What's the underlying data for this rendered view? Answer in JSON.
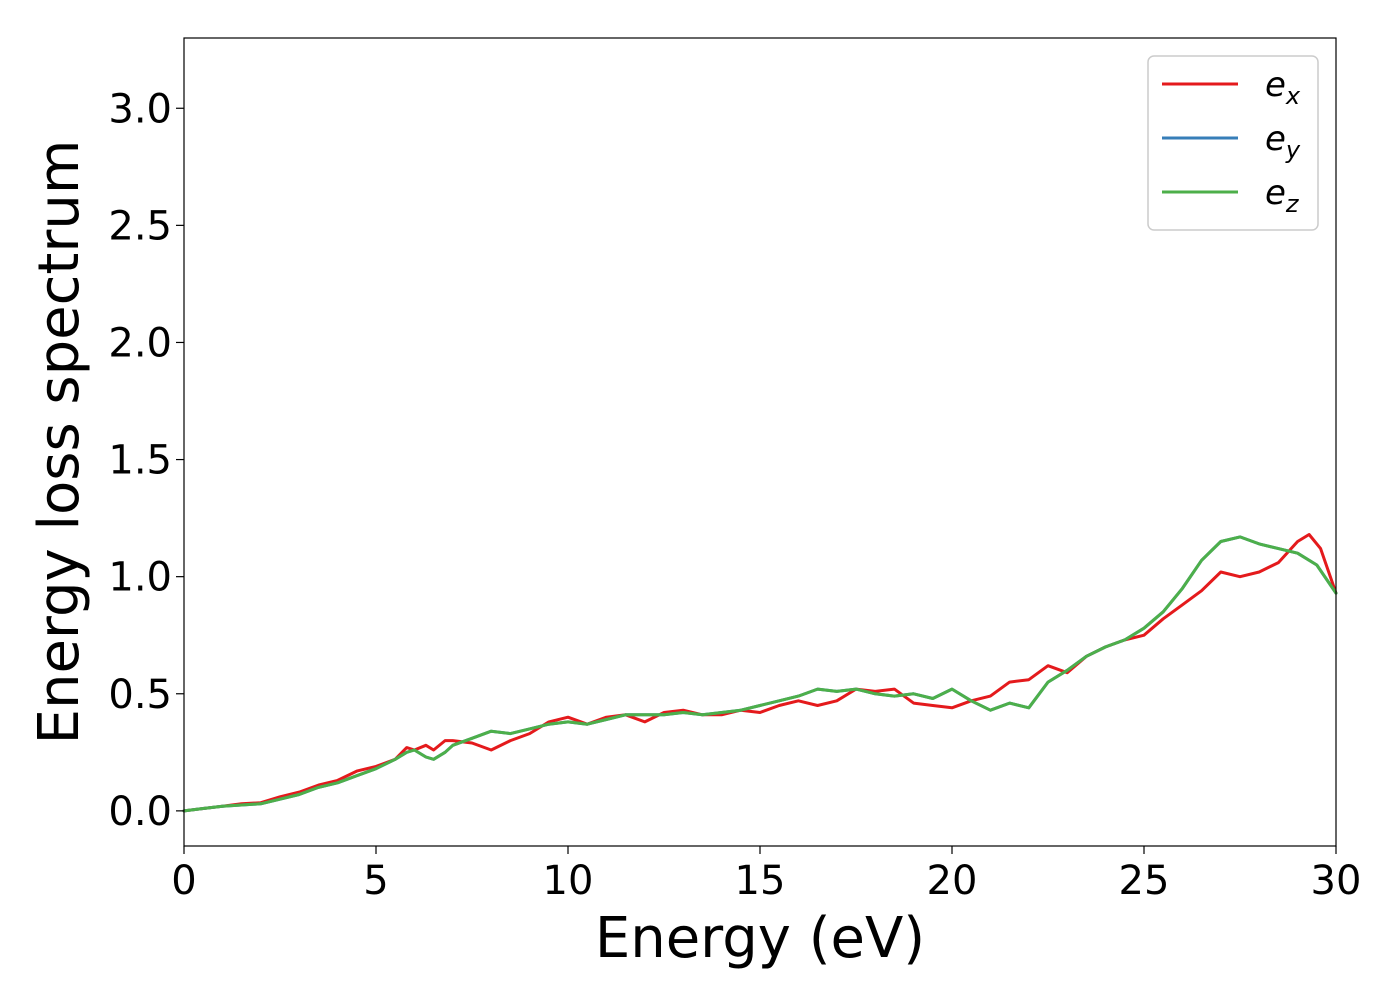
{
  "chart_data": {
    "type": "line",
    "title": "",
    "xlabel": "Energy (eV)",
    "ylabel": "Energy loss spectrum",
    "xlim": [
      0,
      30
    ],
    "ylim": [
      -0.15,
      3.3
    ],
    "xticks": [
      0,
      5,
      10,
      15,
      20,
      25,
      30
    ],
    "yticks": [
      0.0,
      0.5,
      1.0,
      1.5,
      2.0,
      2.5,
      3.0
    ],
    "xtick_labels": [
      "0",
      "5",
      "10",
      "15",
      "20",
      "25",
      "30"
    ],
    "ytick_labels": [
      "0.0",
      "0.5",
      "1.0",
      "1.5",
      "2.0",
      "2.5",
      "3.0"
    ],
    "grid": false,
    "legend_position": "top-right",
    "series": [
      {
        "name": "e",
        "subscript": "x",
        "color": "#e41a1c",
        "x": [
          0,
          0.5,
          1,
          1.5,
          2,
          2.5,
          3,
          3.5,
          4,
          4.5,
          5,
          5.5,
          5.8,
          6,
          6.3,
          6.5,
          6.8,
          7,
          7.5,
          8,
          8.5,
          9,
          9.5,
          10,
          10.5,
          11,
          11.5,
          12,
          12.5,
          13,
          13.5,
          14,
          14.5,
          15,
          15.5,
          16,
          16.5,
          17,
          17.5,
          18,
          18.5,
          19,
          19.5,
          20,
          20.5,
          21,
          21.5,
          22,
          22.5,
          23,
          23.5,
          24,
          24.5,
          25,
          25.5,
          26,
          26.5,
          27,
          27.5,
          28,
          28.5,
          29,
          29.3,
          29.6,
          30
        ],
        "values": [
          0.0,
          0.01,
          0.02,
          0.03,
          0.035,
          0.06,
          0.08,
          0.11,
          0.13,
          0.17,
          0.19,
          0.22,
          0.27,
          0.26,
          0.28,
          0.26,
          0.3,
          0.3,
          0.29,
          0.26,
          0.3,
          0.33,
          0.38,
          0.4,
          0.37,
          0.4,
          0.41,
          0.38,
          0.42,
          0.43,
          0.41,
          0.41,
          0.43,
          0.42,
          0.45,
          0.47,
          0.45,
          0.47,
          0.52,
          0.51,
          0.52,
          0.46,
          0.45,
          0.44,
          0.47,
          0.49,
          0.55,
          0.56,
          0.62,
          0.59,
          0.66,
          0.7,
          0.73,
          0.75,
          0.82,
          0.88,
          0.94,
          1.02,
          1.0,
          1.02,
          1.06,
          1.15,
          1.18,
          1.12,
          0.93
        ]
      },
      {
        "name": "e",
        "subscript": "y",
        "color": "#377eb8",
        "x": [
          0,
          0.5,
          1,
          1.5,
          2,
          2.5,
          3,
          3.5,
          4,
          4.5,
          5,
          5.5,
          5.8,
          6,
          6.3,
          6.5,
          6.8,
          7,
          7.5,
          8,
          8.5,
          9,
          9.5,
          10,
          10.5,
          11,
          11.5,
          12,
          12.5,
          13,
          13.5,
          14,
          14.5,
          15,
          15.5,
          16,
          16.5,
          17,
          17.5,
          18,
          18.5,
          19,
          19.5,
          20,
          20.5,
          21,
          21.5,
          22,
          22.5,
          23,
          23.5,
          24,
          24.5,
          25,
          25.5,
          26,
          26.5,
          27,
          27.5,
          28,
          28.5,
          29,
          29.5,
          30
        ],
        "values": [
          0.0,
          0.01,
          0.02,
          0.025,
          0.03,
          0.05,
          0.07,
          0.1,
          0.12,
          0.15,
          0.18,
          0.22,
          0.25,
          0.26,
          0.23,
          0.22,
          0.25,
          0.28,
          0.31,
          0.34,
          0.33,
          0.35,
          0.37,
          0.38,
          0.37,
          0.39,
          0.41,
          0.41,
          0.41,
          0.42,
          0.41,
          0.42,
          0.43,
          0.45,
          0.47,
          0.49,
          0.52,
          0.51,
          0.52,
          0.5,
          0.49,
          0.5,
          0.48,
          0.52,
          0.47,
          0.43,
          0.46,
          0.44,
          0.55,
          0.6,
          0.66,
          0.7,
          0.73,
          0.78,
          0.85,
          0.95,
          1.07,
          1.15,
          1.17,
          1.14,
          1.12,
          1.1,
          1.05,
          0.93
        ]
      },
      {
        "name": "e",
        "subscript": "z",
        "color": "#4daf4a",
        "x": [
          0,
          0.5,
          1,
          1.5,
          2,
          2.5,
          3,
          3.5,
          4,
          4.5,
          5,
          5.5,
          5.8,
          6,
          6.3,
          6.5,
          6.8,
          7,
          7.5,
          8,
          8.5,
          9,
          9.5,
          10,
          10.5,
          11,
          11.5,
          12,
          12.5,
          13,
          13.5,
          14,
          14.5,
          15,
          15.5,
          16,
          16.5,
          17,
          17.5,
          18,
          18.5,
          19,
          19.5,
          20,
          20.5,
          21,
          21.5,
          22,
          22.5,
          23,
          23.5,
          24,
          24.5,
          25,
          25.5,
          26,
          26.5,
          27,
          27.5,
          28,
          28.5,
          29,
          29.5,
          30
        ],
        "values": [
          0.0,
          0.01,
          0.02,
          0.025,
          0.03,
          0.05,
          0.07,
          0.1,
          0.12,
          0.15,
          0.18,
          0.22,
          0.25,
          0.26,
          0.23,
          0.22,
          0.25,
          0.28,
          0.31,
          0.34,
          0.33,
          0.35,
          0.37,
          0.38,
          0.37,
          0.39,
          0.41,
          0.41,
          0.41,
          0.42,
          0.41,
          0.42,
          0.43,
          0.45,
          0.47,
          0.49,
          0.52,
          0.51,
          0.52,
          0.5,
          0.49,
          0.5,
          0.48,
          0.52,
          0.47,
          0.43,
          0.46,
          0.44,
          0.55,
          0.6,
          0.66,
          0.7,
          0.73,
          0.78,
          0.85,
          0.95,
          1.07,
          1.15,
          1.17,
          1.14,
          1.12,
          1.1,
          1.05,
          0.93
        ]
      }
    ]
  }
}
